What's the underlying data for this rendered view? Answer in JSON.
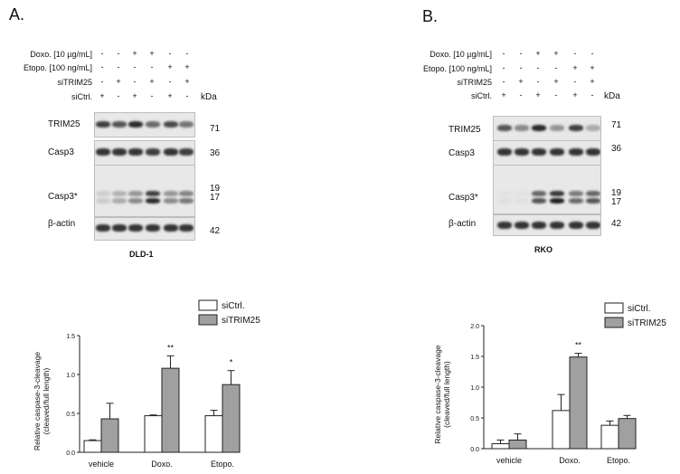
{
  "panels": [
    {
      "letter": "A.",
      "cell_line": "DLD-1",
      "conditions": [
        {
          "label": "Doxo. [10 µg/mL]",
          "signs": [
            "-",
            "-",
            "+",
            "+",
            "-",
            "-"
          ]
        },
        {
          "label": "Etopo. [100 ng/mL]",
          "signs": [
            "-",
            "-",
            "-",
            "-",
            "+",
            "+"
          ]
        },
        {
          "label": "siTRIM25",
          "signs": [
            "-",
            "+",
            "-",
            "+",
            "-",
            "+"
          ]
        },
        {
          "label": "siCtrl.",
          "signs": [
            "+",
            "-",
            "+",
            "-",
            "+",
            "-"
          ]
        }
      ],
      "kda_header": "kDa",
      "blots": [
        {
          "label": "TRIM25",
          "kda": [
            "71"
          ],
          "intensity": [
            0.8,
            0.7,
            0.9,
            0.6,
            0.75,
            0.55
          ]
        },
        {
          "label": "Casp3",
          "kda": [
            "36"
          ],
          "intensity": [
            0.85,
            0.85,
            0.85,
            0.8,
            0.85,
            0.8
          ]
        },
        {
          "label": "Casp3*",
          "kda": [
            "19",
            "17"
          ],
          "intensity": [
            0.15,
            0.3,
            0.45,
            0.9,
            0.45,
            0.55
          ]
        },
        {
          "label": "β-actin",
          "kda": [
            "42"
          ],
          "intensity": [
            0.85,
            0.85,
            0.85,
            0.85,
            0.85,
            0.85
          ]
        }
      ],
      "chart_data": {
        "type": "bar",
        "categories": [
          "vehicle",
          "Doxo.",
          "Etopo."
        ],
        "series": [
          {
            "name": "siCtrl.",
            "values": [
              0.15,
              0.47,
              0.47
            ],
            "errors": [
              0.01,
              0.01,
              0.07
            ],
            "color": "#ffffff"
          },
          {
            "name": "siTRIM25",
            "values": [
              0.43,
              1.08,
              0.87
            ],
            "errors": [
              0.2,
              0.16,
              0.18
            ],
            "color": "#a0a0a0"
          }
        ],
        "significance": [
          {
            "category": "Doxo.",
            "series": "siTRIM25",
            "text": "**"
          },
          {
            "category": "Etopo.",
            "series": "siTRIM25",
            "text": "*"
          }
        ],
        "ylabel": "Relative caspase-3-cleavage (cleaved/full length)",
        "ylabel_lines": [
          "Relative caspase-3-cleavage",
          "(cleaved/full length)"
        ],
        "yticks": [
          "0.0",
          "0.5",
          "1.0",
          "1.5"
        ],
        "ylim": [
          0,
          1.5
        ],
        "legend_placement": "top-right"
      }
    },
    {
      "letter": "B.",
      "cell_line": "RKO",
      "conditions": [
        {
          "label": "Doxo. [10 µg/mL]",
          "signs": [
            "-",
            "-",
            "+",
            "+",
            "-",
            "-"
          ]
        },
        {
          "label": "Etopo. [100 ng/mL]",
          "signs": [
            "-",
            "-",
            "-",
            "-",
            "+",
            "+"
          ]
        },
        {
          "label": "siTRIM25",
          "signs": [
            "-",
            "+",
            "-",
            "+",
            "-",
            "+"
          ]
        },
        {
          "label": "siCtrl.",
          "signs": [
            "+",
            "-",
            "+",
            "-",
            "+",
            "-"
          ]
        }
      ],
      "kda_header": "kDa",
      "blots": [
        {
          "label": "TRIM25",
          "kda": [
            "71"
          ],
          "intensity": [
            0.7,
            0.45,
            0.9,
            0.4,
            0.8,
            0.3
          ]
        },
        {
          "label": "Casp3",
          "kda": [
            "36"
          ],
          "intensity": [
            0.85,
            0.85,
            0.85,
            0.85,
            0.85,
            0.85
          ]
        },
        {
          "label": "Casp3*",
          "kda": [
            "19",
            "17"
          ],
          "intensity": [
            0.05,
            0.05,
            0.7,
            0.95,
            0.6,
            0.7
          ]
        },
        {
          "label": "β-actin",
          "kda": [
            "42"
          ],
          "intensity": [
            0.85,
            0.85,
            0.85,
            0.85,
            0.85,
            0.85
          ]
        }
      ],
      "chart_data": {
        "type": "bar",
        "categories": [
          "vehicle",
          "Doxo.",
          "Etopo."
        ],
        "series": [
          {
            "name": "siCtrl.",
            "values": [
              0.08,
              0.62,
              0.38
            ],
            "errors": [
              0.06,
              0.26,
              0.07
            ],
            "color": "#ffffff"
          },
          {
            "name": "siTRIM25",
            "values": [
              0.14,
              1.49,
              0.49
            ],
            "errors": [
              0.1,
              0.06,
              0.05
            ],
            "color": "#a0a0a0"
          }
        ],
        "significance": [
          {
            "category": "Doxo.",
            "series": "siTRIM25",
            "text": "**"
          }
        ],
        "ylabel": "Relative caspase-3-cleavage (cleaved/full length)",
        "ylabel_lines": [
          "Relative caspase-3-cleavage",
          "(cleaved/full length)"
        ],
        "yticks": [
          "0.0",
          "0.5",
          "1.0",
          "1.5",
          "2.0"
        ],
        "ylim": [
          0,
          2.0
        ],
        "legend_placement": "top-right"
      }
    }
  ]
}
